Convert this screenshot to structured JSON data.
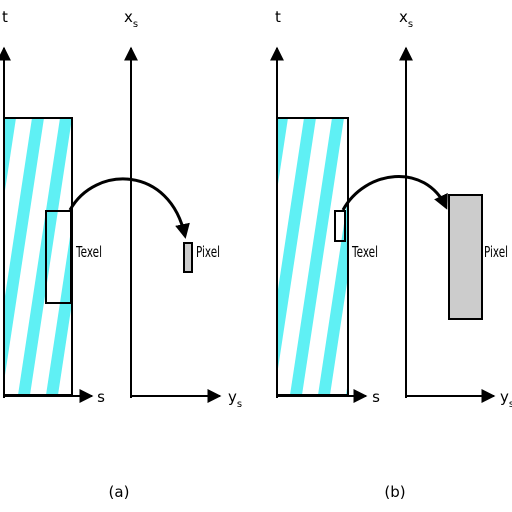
{
  "colors": {
    "stripe": "#5ff0f4",
    "pixel_fill": "#cccccc",
    "ink": "#000000"
  },
  "panels": [
    {
      "id": "a",
      "caption": "(a)",
      "texture_axis_vertical": "t",
      "texture_axis_horizontal": "s",
      "screen_axis_vertical": {
        "main": "x",
        "sub": "s"
      },
      "screen_axis_horizontal": {
        "main": "y",
        "sub": "s"
      },
      "texel_label": "Texel",
      "pixel_label": "Pixel"
    },
    {
      "id": "b",
      "caption": "(b)",
      "texture_axis_vertical": "t",
      "texture_axis_horizontal": "s",
      "screen_axis_vertical": {
        "main": "x",
        "sub": "s"
      },
      "screen_axis_horizontal": {
        "main": "y",
        "sub": "s"
      },
      "texel_label": "Texel",
      "pixel_label": "Pixel"
    }
  ]
}
